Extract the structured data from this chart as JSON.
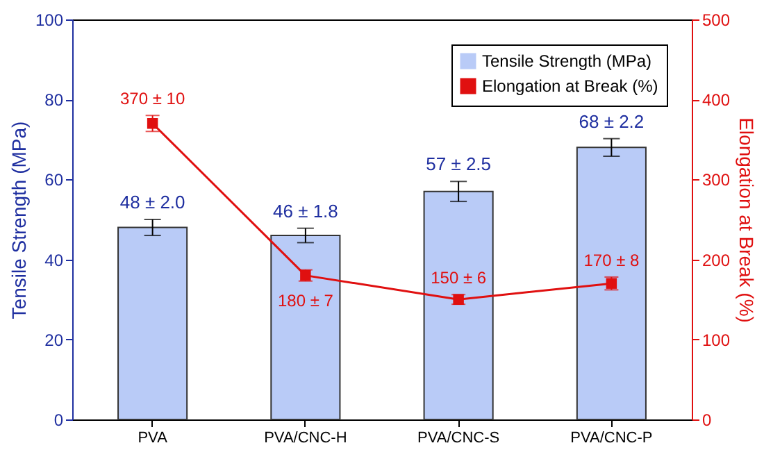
{
  "chart_data": {
    "type": "bar",
    "categories": [
      "PVA",
      "PVA/CNC-H",
      "PVA/CNC-S",
      "PVA/CNC-P"
    ],
    "ylabel": "Tensile Strength (MPa)",
    "y2label": "Elongation at Break (%)",
    "ylim": [
      0,
      100
    ],
    "yticks": [
      0,
      20,
      40,
      60,
      80,
      100
    ],
    "y2lim": [
      0,
      500
    ],
    "y2ticks": [
      0,
      100,
      200,
      300,
      400,
      500
    ],
    "legend": "top right",
    "grid": false,
    "marker": "square",
    "line_style": "solid",
    "series": [
      {
        "name": "Tensile Strength (MPa)",
        "color": "#b9cbf7",
        "values": [
          48,
          46,
          57,
          68
        ],
        "errors": [
          2.0,
          1.8,
          2.5,
          2.2
        ],
        "value_labels": [
          "48 ± 2.0",
          "46 ± 1.8",
          "57 ± 2.5",
          "68 ± 2.2"
        ]
      },
      {
        "name": "Elongation at Break (%)",
        "type": "line",
        "axis": "y2",
        "color": "#e01010",
        "values": [
          370,
          180,
          150,
          170
        ],
        "errors": [
          10,
          7,
          6,
          8
        ],
        "value_labels": [
          "370 ± 10",
          "180 ± 7",
          "150 ± 6",
          "170 ± 8"
        ]
      }
    ]
  }
}
